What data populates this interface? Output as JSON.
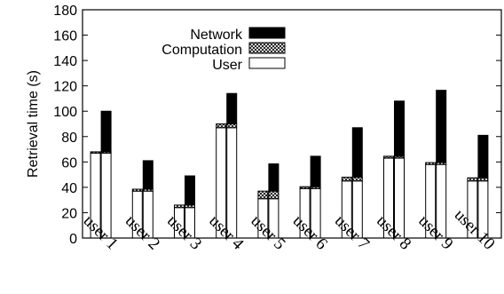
{
  "chart_data": {
    "type": "bar",
    "stacked": true,
    "ylabel": "Retrieval time (s)",
    "ylim": [
      0,
      180
    ],
    "yticks": [
      0,
      20,
      40,
      60,
      80,
      100,
      120,
      140,
      160,
      180
    ],
    "categories": [
      "user 1",
      "user 2",
      "user 3",
      "user 4",
      "user 5",
      "user 6",
      "user 7",
      "user 8",
      "user 9",
      "user 10"
    ],
    "legend_position": "top-left",
    "series": [
      {
        "name": "User",
        "color": "#ffffff",
        "pattern": "none"
      },
      {
        "name": "Computation",
        "color": "#ffffff",
        "pattern": "crosshatch"
      },
      {
        "name": "Network",
        "color": "#000000",
        "pattern": "solid"
      }
    ],
    "groups": [
      {
        "category": "user 1",
        "bars": [
          {
            "user": 67,
            "computation": 1,
            "network": 0
          },
          {
            "user": 67,
            "computation": 1,
            "network": 32
          }
        ]
      },
      {
        "category": "user 2",
        "bars": [
          {
            "user": 37,
            "computation": 1.5,
            "network": 0
          },
          {
            "user": 37,
            "computation": 1.5,
            "network": 22.5
          }
        ]
      },
      {
        "category": "user 3",
        "bars": [
          {
            "user": 24,
            "computation": 2,
            "network": 0
          },
          {
            "user": 24,
            "computation": 2,
            "network": 23
          }
        ]
      },
      {
        "category": "user 4",
        "bars": [
          {
            "user": 87,
            "computation": 3,
            "network": 0
          },
          {
            "user": 87,
            "computation": 3,
            "network": 24
          }
        ]
      },
      {
        "category": "user 5",
        "bars": [
          {
            "user": 31,
            "computation": 6,
            "network": 0
          },
          {
            "user": 31,
            "computation": 6,
            "network": 21.5
          }
        ]
      },
      {
        "category": "user 6",
        "bars": [
          {
            "user": 39,
            "computation": 1.5,
            "network": 0
          },
          {
            "user": 39,
            "computation": 1.5,
            "network": 24
          }
        ]
      },
      {
        "category": "user 7",
        "bars": [
          {
            "user": 45,
            "computation": 3,
            "network": 0
          },
          {
            "user": 45,
            "computation": 3,
            "network": 39
          }
        ]
      },
      {
        "category": "user 8",
        "bars": [
          {
            "user": 63,
            "computation": 1.5,
            "network": 0
          },
          {
            "user": 63,
            "computation": 1.5,
            "network": 43.5
          }
        ]
      },
      {
        "category": "user 9",
        "bars": [
          {
            "user": 58,
            "computation": 1.5,
            "network": 0
          },
          {
            "user": 58,
            "computation": 1.5,
            "network": 57
          }
        ]
      },
      {
        "category": "user 10",
        "bars": [
          {
            "user": 45,
            "computation": 2.5,
            "network": 0
          },
          {
            "user": 45,
            "computation": 2.5,
            "network": 33.5
          }
        ]
      }
    ]
  }
}
